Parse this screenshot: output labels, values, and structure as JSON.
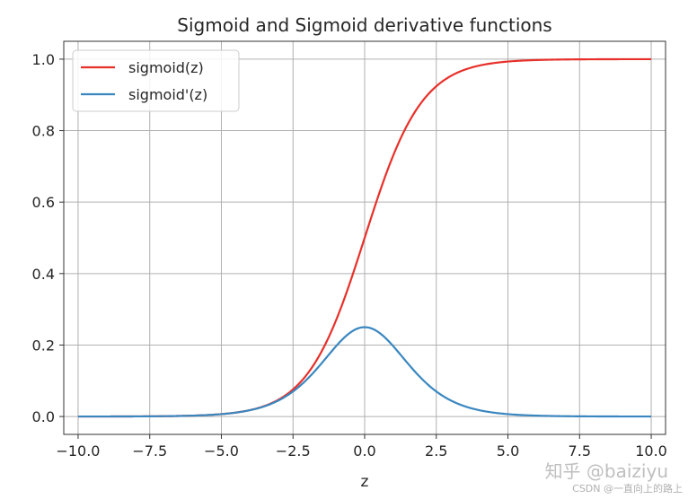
{
  "chart_data": {
    "type": "line",
    "title": "Sigmoid and Sigmoid derivative functions",
    "xlabel": "z",
    "ylabel": "",
    "xlim": [
      -10.5,
      10.5
    ],
    "ylim": [
      -0.05,
      1.05
    ],
    "x_ticks": [
      -10.0,
      -7.5,
      -5.0,
      -2.5,
      0.0,
      2.5,
      5.0,
      7.5,
      10.0
    ],
    "x_tick_labels": [
      "−10.0",
      "−7.5",
      "−5.0",
      "−2.5",
      "0.0",
      "2.5",
      "5.0",
      "7.5",
      "10.0"
    ],
    "y_ticks": [
      0.0,
      0.2,
      0.4,
      0.6,
      0.8,
      1.0
    ],
    "y_tick_labels": [
      "0.0",
      "0.2",
      "0.4",
      "0.6",
      "0.8",
      "1.0"
    ],
    "grid": true,
    "legend_position": "top-left",
    "x": [
      -10,
      -9,
      -8,
      -7,
      -6,
      -5,
      -4,
      -3.5,
      -3,
      -2.5,
      -2,
      -1.5,
      -1,
      -0.5,
      0,
      0.5,
      1,
      1.5,
      2,
      2.5,
      3,
      3.5,
      4,
      5,
      6,
      7,
      8,
      9,
      10
    ],
    "series": [
      {
        "name": "sigmoid(z)",
        "color": "#e8302a",
        "values": [
          5e-05,
          0.00012,
          0.00034,
          0.00091,
          0.00247,
          0.00669,
          0.01799,
          0.02931,
          0.04743,
          0.07586,
          0.1192,
          0.18243,
          0.26894,
          0.37754,
          0.5,
          0.62246,
          0.73106,
          0.81757,
          0.8808,
          0.92414,
          0.95257,
          0.97069,
          0.98201,
          0.99331,
          0.99753,
          0.99909,
          0.99966,
          0.99988,
          0.99995
        ]
      },
      {
        "name": "sigmoid'(z)",
        "color": "#3a87bf",
        "values": [
          5e-05,
          0.00012,
          0.00034,
          0.00091,
          0.00247,
          0.00665,
          0.01766,
          0.02845,
          0.04518,
          0.07011,
          0.10499,
          0.14915,
          0.19661,
          0.235,
          0.25,
          0.235,
          0.19661,
          0.14915,
          0.10499,
          0.07011,
          0.04518,
          0.02845,
          0.01766,
          0.00665,
          0.00247,
          0.00091,
          0.00034,
          0.00012,
          5e-05
        ]
      }
    ]
  },
  "watermark": {
    "main": "知乎 @baiziyu",
    "sub": "CSDN @一直向上的路上"
  }
}
